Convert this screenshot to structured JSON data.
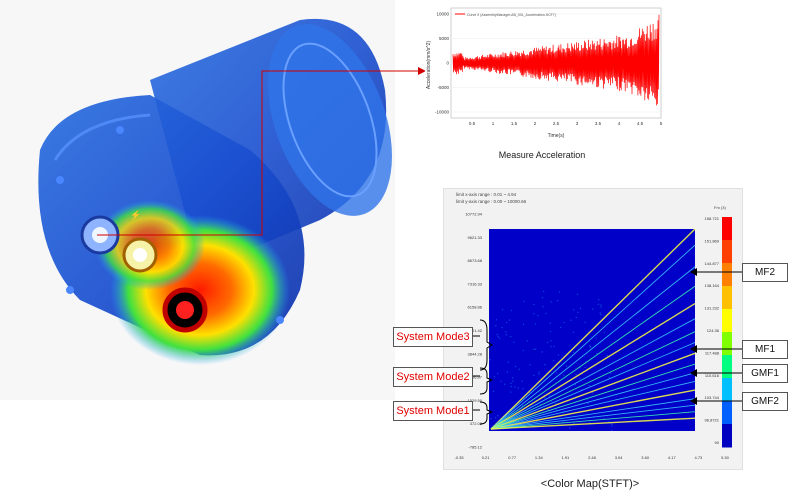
{
  "acceleration_chart": {
    "legend": "Curve 0 (AssemblyManager.AB_001_Acceleration.SCF7)",
    "ylabel": "Acceleration(mm/s^2)",
    "xlabel": "Time(s)",
    "y_ticks": [
      "10000",
      "5000",
      "0",
      "-5000",
      "-10000"
    ],
    "x_ticks": [
      "0.5",
      "1",
      "1.5",
      "2",
      "2.5",
      "3",
      "3.5",
      "4",
      "4.5",
      "5"
    ],
    "caption": "Measure Acceleration",
    "color": "#ff0000"
  },
  "stft_chart": {
    "header_1": "limit x-axis range : 0.01 ~ 4.94",
    "header_2": "limit y-axis range : 0.00 ~ 10000.66",
    "y_ticks": [
      "10772.94",
      "9621.33",
      "8673.68",
      "7316.33",
      "6158.86",
      "5001.42",
      "3844.28",
      "2686.87",
      "1529.50",
      "372.03",
      "-785.12"
    ],
    "x_ticks": [
      "-0.35",
      "0.21",
      "0.77",
      "1.34",
      "1.91",
      "2.48",
      "3.04",
      "3.60",
      "4.17",
      "4.73",
      "5.30"
    ],
    "colorbar_title": "Fm (3)",
    "colorbar_ticks": [
      "158.721",
      "151.869",
      "144.877",
      "138.164",
      "131.232",
      "124.36",
      "117.488",
      "110.616",
      "103.744",
      "96.8721",
      "90"
    ],
    "caption": "<Color Map(STFT)>"
  },
  "annotations": {
    "modes": [
      "System Mode3",
      "System Mode2",
      "System Mode1"
    ],
    "orders": [
      "MF2",
      "MF1",
      "GMF1",
      "GMF2"
    ]
  },
  "colors": {
    "arrow": "#d00000",
    "mode_text": "#e00000",
    "map_bg": "#0000c8"
  }
}
